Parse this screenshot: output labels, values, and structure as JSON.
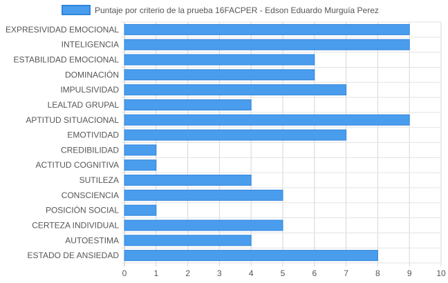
{
  "chart_data": {
    "type": "bar",
    "orientation": "horizontal",
    "categories": [
      "EXPRESIVIDAD EMOCIONAL",
      "INTELIGENCIA",
      "ESTABILIDAD EMOCIONAL",
      "DOMINACIÓN",
      "IMPULSIVIDAD",
      "LEALTAD GRUPAL",
      "APTITUD SITUACIONAL",
      "EMOTIVIDAD",
      "CREDIBILIDAD",
      "ACTITUD COGNITIVA",
      "SUTILEZA",
      "CONSCIENCIA",
      "POSICIÓN SOCIAL",
      "CERTEZA INDIVIDUAL",
      "AUTOESTIMA",
      "ESTADO DE ANSIEDAD"
    ],
    "series": [
      {
        "name": "Puntaje por criterio de la prueba 16FACPER - Edson Eduardo Murguía Perez",
        "values": [
          9,
          9,
          6,
          6,
          7,
          4,
          9,
          7,
          1,
          1,
          4,
          5,
          1,
          5,
          4,
          8
        ],
        "color": "#4a9ded",
        "border_color": "#2f84db"
      }
    ],
    "xlim": [
      0,
      10
    ],
    "xticks": [
      0,
      1,
      2,
      3,
      4,
      5,
      6,
      7,
      8,
      9,
      10
    ],
    "grid": true,
    "legend_position": "top-center",
    "title": "",
    "xlabel": "",
    "ylabel": ""
  }
}
